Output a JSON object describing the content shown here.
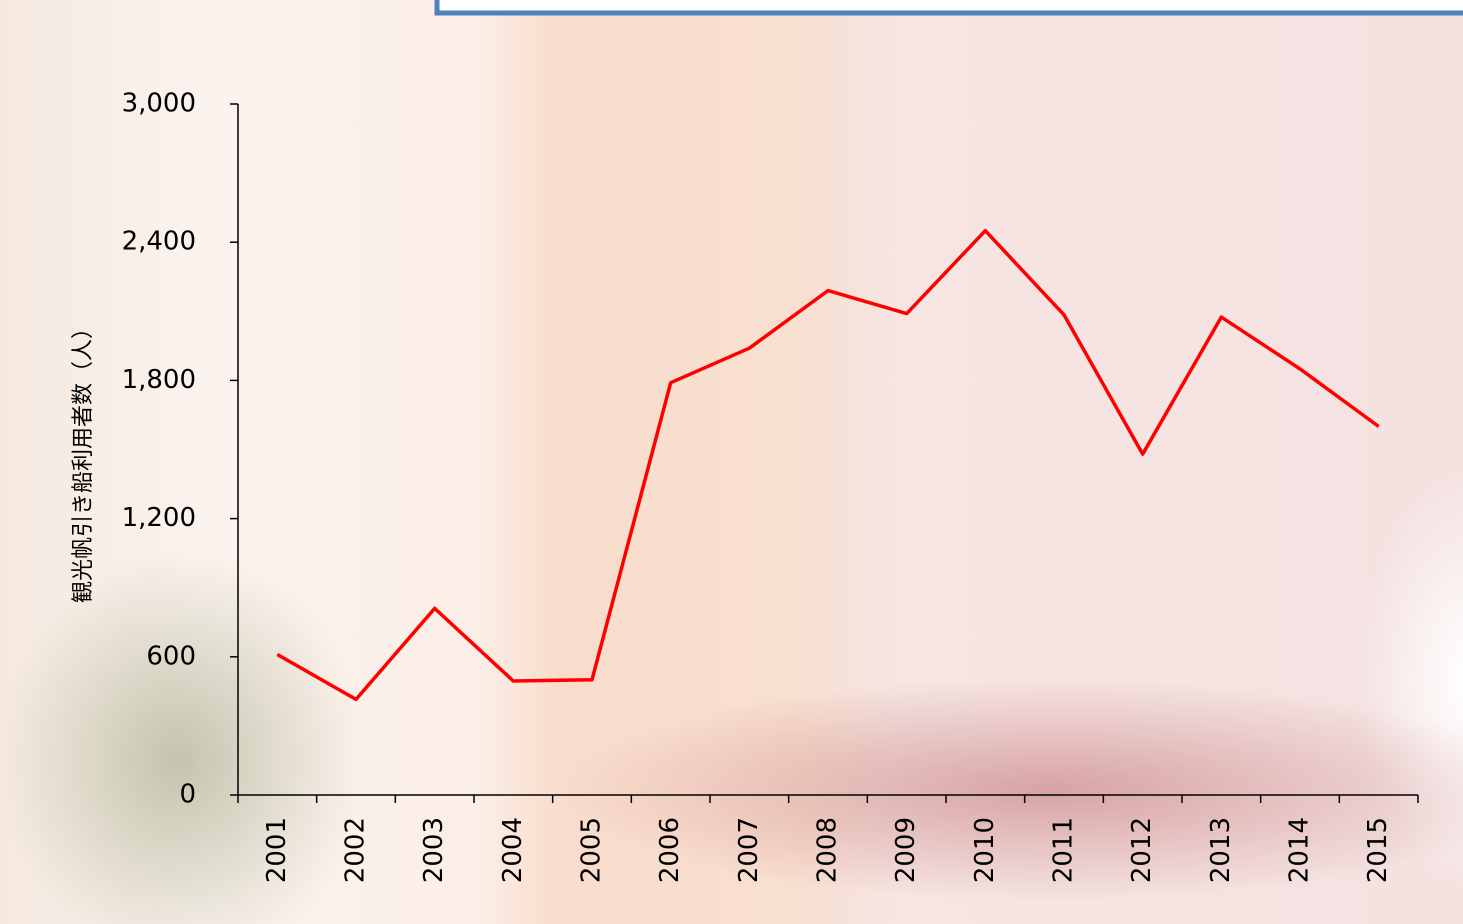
{
  "chart_data": {
    "type": "line",
    "y_label": "観光帆引き船利用者数（人）",
    "categories": [
      "2001",
      "2002",
      "2003",
      "2004",
      "2005",
      "2006",
      "2007",
      "2008",
      "2009",
      "2010",
      "2011",
      "2012",
      "2013",
      "2014",
      "2015"
    ],
    "values": [
      610,
      415,
      810,
      495,
      500,
      1790,
      1940,
      2190,
      2090,
      2450,
      2085,
      1480,
      2075,
      1850,
      1600
    ],
    "color": "#ff0000",
    "ylim": [
      0,
      3000
    ],
    "yticks": [
      0,
      600,
      {
        "value": 1200,
        "label": "1,200"
      },
      {
        "value": 1800,
        "label": "1,800"
      },
      {
        "value": 2400,
        "label": "2,400"
      },
      {
        "value": 3000,
        "label": "3,000"
      }
    ],
    "grid": false
  }
}
